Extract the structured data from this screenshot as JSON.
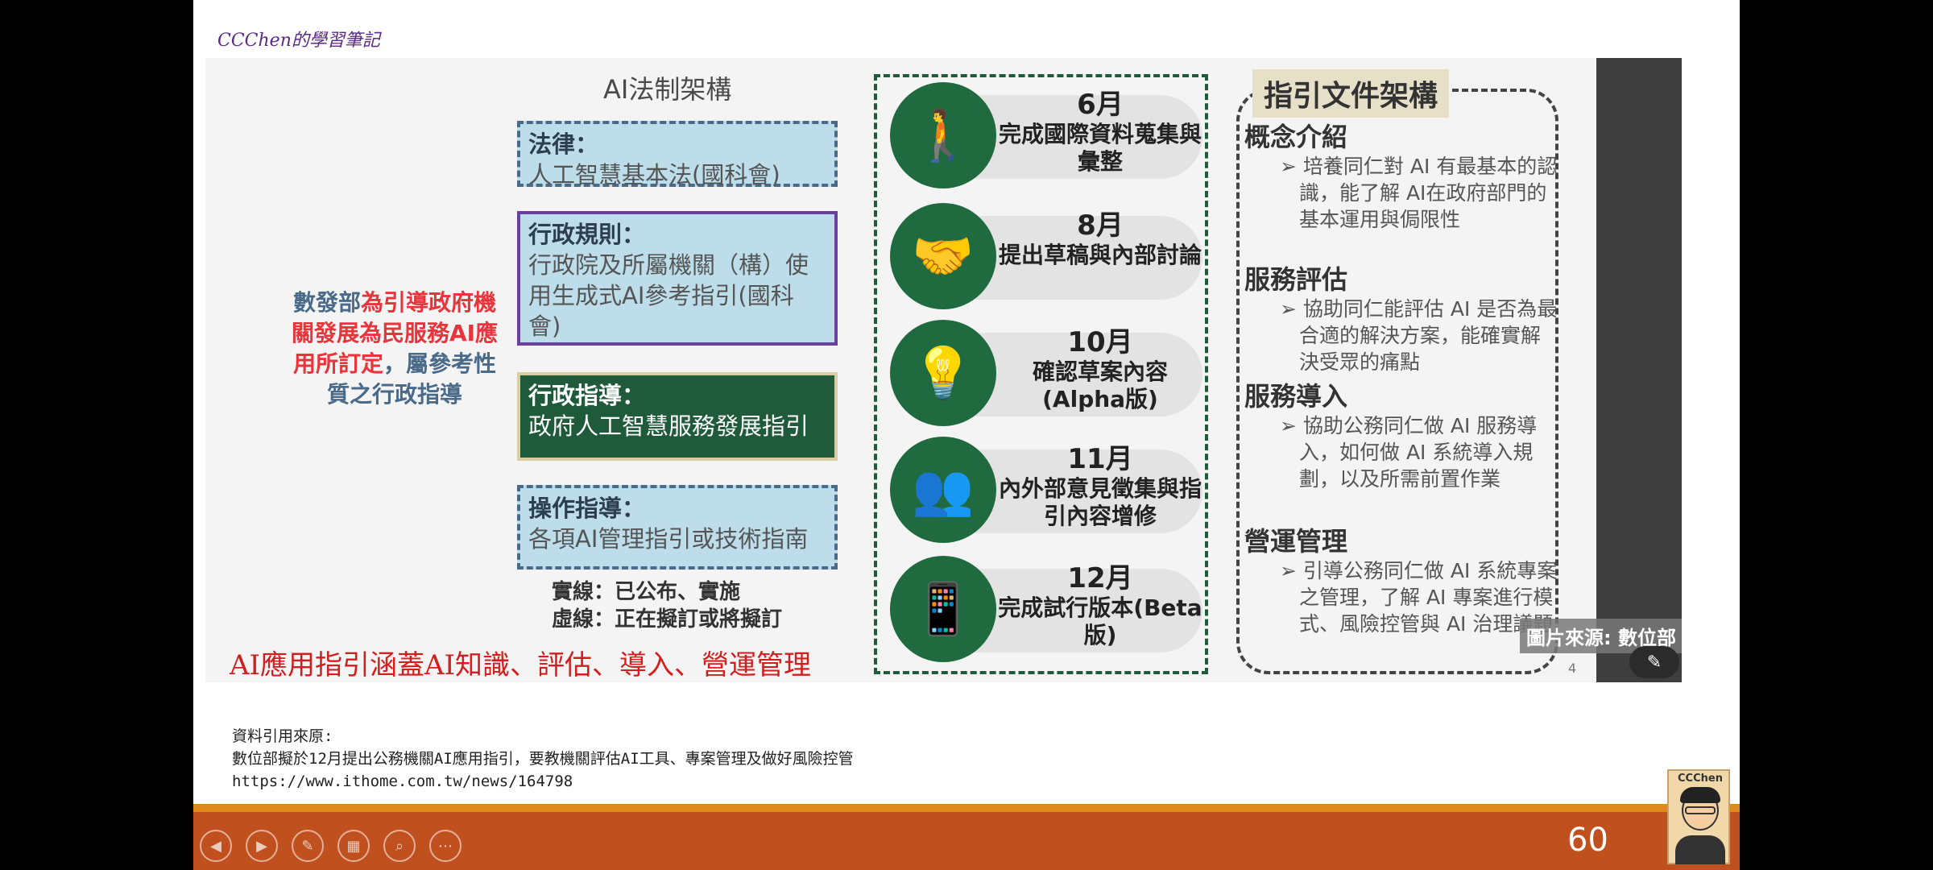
{
  "brand": "CCChen的學習筆記",
  "figure": {
    "framework_title": "AI法制架構",
    "legal_boxes": [
      {
        "label": "法律：",
        "text": "人工智慧基本法(國科會)"
      },
      {
        "label": "行政規則：",
        "text": "行政院及所屬機關（構）使用生成式AI參考指引(國科會)"
      },
      {
        "label": "行政指導：",
        "text": "政府人工智慧服務發展指引"
      },
      {
        "label": "操作指導：",
        "text": "各項AI管理指引或技術指南"
      }
    ],
    "side_note": {
      "prefix": "數發部",
      "red": "為引導政府機關發展為民服務AI應用所訂定",
      "suffix": "，屬參考性質之行政指導"
    },
    "legend": {
      "solid": "實線：已公布、實施",
      "dashed": "虛線：正在擬訂或將擬訂"
    },
    "caption": "AI應用指引涵蓋AI知識、評估、導入、營運管理",
    "timeline": [
      {
        "month": "6月",
        "desc": "完成國際資料蒐集與彙整",
        "icon": "walking-person-icon"
      },
      {
        "month": "8月",
        "desc": "提出草稿與內部討論",
        "icon": "handshake-icon"
      },
      {
        "month": "10月",
        "desc": "確認草案內容(Alpha版)",
        "icon": "lightbulb-icon"
      },
      {
        "month": "11月",
        "desc": "內外部意見徵集與指引內容增修",
        "icon": "people-hand-icon"
      },
      {
        "month": "12月",
        "desc": "完成試行版本(Beta版)",
        "icon": "tablet-megaphone-icon"
      }
    ],
    "guide_title": "指引文件架構",
    "guide_sections": [
      {
        "head": "概念介紹",
        "body": "培養同仁對 AI 有最基本的認識，能了解 AI在政府部門的基本運用與侷限性"
      },
      {
        "head": "服務評估",
        "body": "協助同仁能評估 AI 是否為最合適的解決方案，能確實解決受眾的痛點"
      },
      {
        "head": "服務導入",
        "body": "協助公務同仁做 AI 服務導入，如何做 AI 系統導入規劃，以及所需前置作業"
      },
      {
        "head": "營運管理",
        "body": "引導公務同仁做 AI 系統專案之管理，了解 AI 專案進行模式、風險控管與 AI 治理議題"
      }
    ],
    "photo_credit": "圖片來源: 數位部",
    "inner_page_number": "4"
  },
  "references": {
    "label": "資料引用來原:",
    "title": "數位部擬於12月提出公務機關AI應用指引，要教機關評估AI工具、專案管理及做好風險控管",
    "url": "https://www.ithome.com.tw/news/164798"
  },
  "footer": {
    "slide_number": "60",
    "avatar_name": "CCChen"
  },
  "colors": {
    "footer_bar": "#c0501e",
    "footer_line": "#e08a1e",
    "timeline_green": "#1f6a3f",
    "caption_red": "#d41e1e"
  }
}
